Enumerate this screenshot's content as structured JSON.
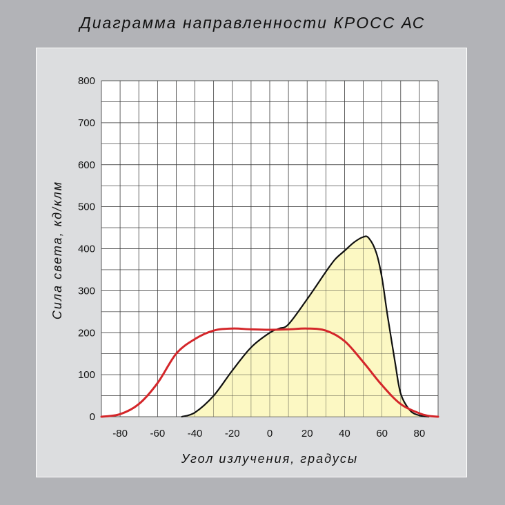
{
  "title": "Диаграмма  направленности КРОСС АС",
  "colors": {
    "background": "#b2b3b7",
    "panel": "#dcdddf",
    "fill": "#fbf7b8",
    "red": "#d4262a",
    "black": "#111111"
  },
  "chart_data": {
    "type": "line",
    "xlabel": "Угол излучения, градусы",
    "ylabel": "Сила света, кд/клм",
    "xlim": [
      -90,
      90
    ],
    "ylim": [
      0,
      800
    ],
    "x_ticks": [
      "-80",
      "-60",
      "-40",
      "-20",
      "0",
      "20",
      "40",
      "60",
      "80"
    ],
    "y_ticks": [
      "0",
      "100",
      "200",
      "300",
      "400",
      "500",
      "600",
      "700",
      "800"
    ],
    "grid": true,
    "series": [
      {
        "color": "#111111",
        "filled": true,
        "points": [
          [
            -47,
            0
          ],
          [
            -40,
            10
          ],
          [
            -30,
            50
          ],
          [
            -20,
            110
          ],
          [
            -10,
            165
          ],
          [
            0,
            200
          ],
          [
            5,
            210
          ],
          [
            10,
            220
          ],
          [
            20,
            280
          ],
          [
            30,
            345
          ],
          [
            35,
            375
          ],
          [
            40,
            395
          ],
          [
            45,
            415
          ],
          [
            50,
            428
          ],
          [
            53,
            425
          ],
          [
            57,
            390
          ],
          [
            60,
            330
          ],
          [
            63,
            240
          ],
          [
            67,
            130
          ],
          [
            70,
            55
          ],
          [
            75,
            15
          ],
          [
            80,
            3
          ],
          [
            85,
            0
          ]
        ]
      },
      {
        "color": "#d4262a",
        "filled": false,
        "points": [
          [
            -90,
            0
          ],
          [
            -80,
            6
          ],
          [
            -70,
            30
          ],
          [
            -60,
            80
          ],
          [
            -50,
            150
          ],
          [
            -40,
            185
          ],
          [
            -30,
            205
          ],
          [
            -20,
            210
          ],
          [
            -10,
            208
          ],
          [
            0,
            207
          ],
          [
            10,
            208
          ],
          [
            20,
            210
          ],
          [
            30,
            205
          ],
          [
            40,
            180
          ],
          [
            50,
            130
          ],
          [
            60,
            75
          ],
          [
            70,
            30
          ],
          [
            80,
            8
          ],
          [
            85,
            2
          ],
          [
            90,
            0
          ]
        ]
      }
    ]
  }
}
